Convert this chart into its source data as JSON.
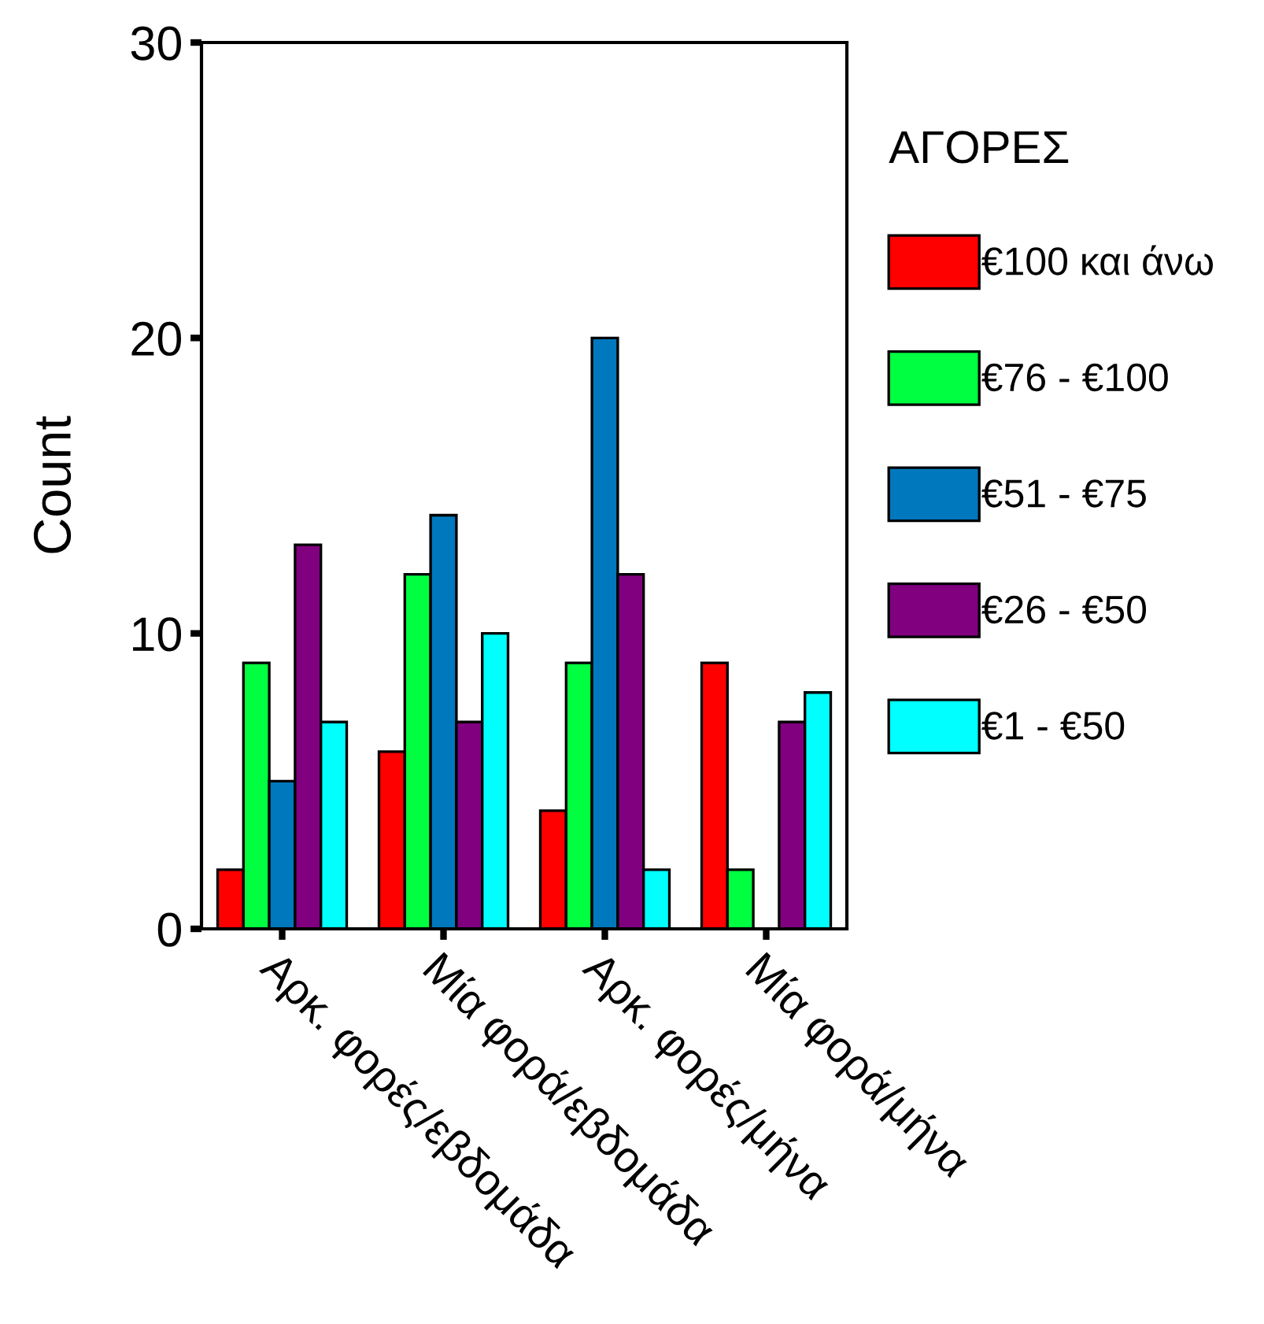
{
  "chart_data": {
    "type": "bar",
    "ylabel": "Count",
    "legend_title": "ΑΓΟΡΕΣ",
    "categories": [
      "Αρκ. φορές/εβδομάδα",
      "Μία φορά/εβδομάδα",
      "Αρκ. φορές/μήνα",
      "Μία φορά/μήνα"
    ],
    "series": [
      {
        "name": "€100 και άνω",
        "color": "#ff0000",
        "values": [
          2,
          6,
          4,
          9
        ]
      },
      {
        "name": "€76 - €100",
        "color": "#00ff40",
        "values": [
          9,
          12,
          9,
          2
        ]
      },
      {
        "name": "€51 - €75",
        "color": "#0078bd",
        "values": [
          5,
          14,
          20,
          null
        ]
      },
      {
        "name": "€26 - €50",
        "color": "#800080",
        "values": [
          13,
          7,
          12,
          7
        ]
      },
      {
        "name": "€1 - €50",
        "color": "#00ffff",
        "values": [
          7,
          10,
          2,
          8
        ]
      }
    ],
    "ylim": [
      0,
      30
    ],
    "yticks": [
      0,
      10,
      20,
      30
    ],
    "grid": false,
    "legend": "right"
  }
}
